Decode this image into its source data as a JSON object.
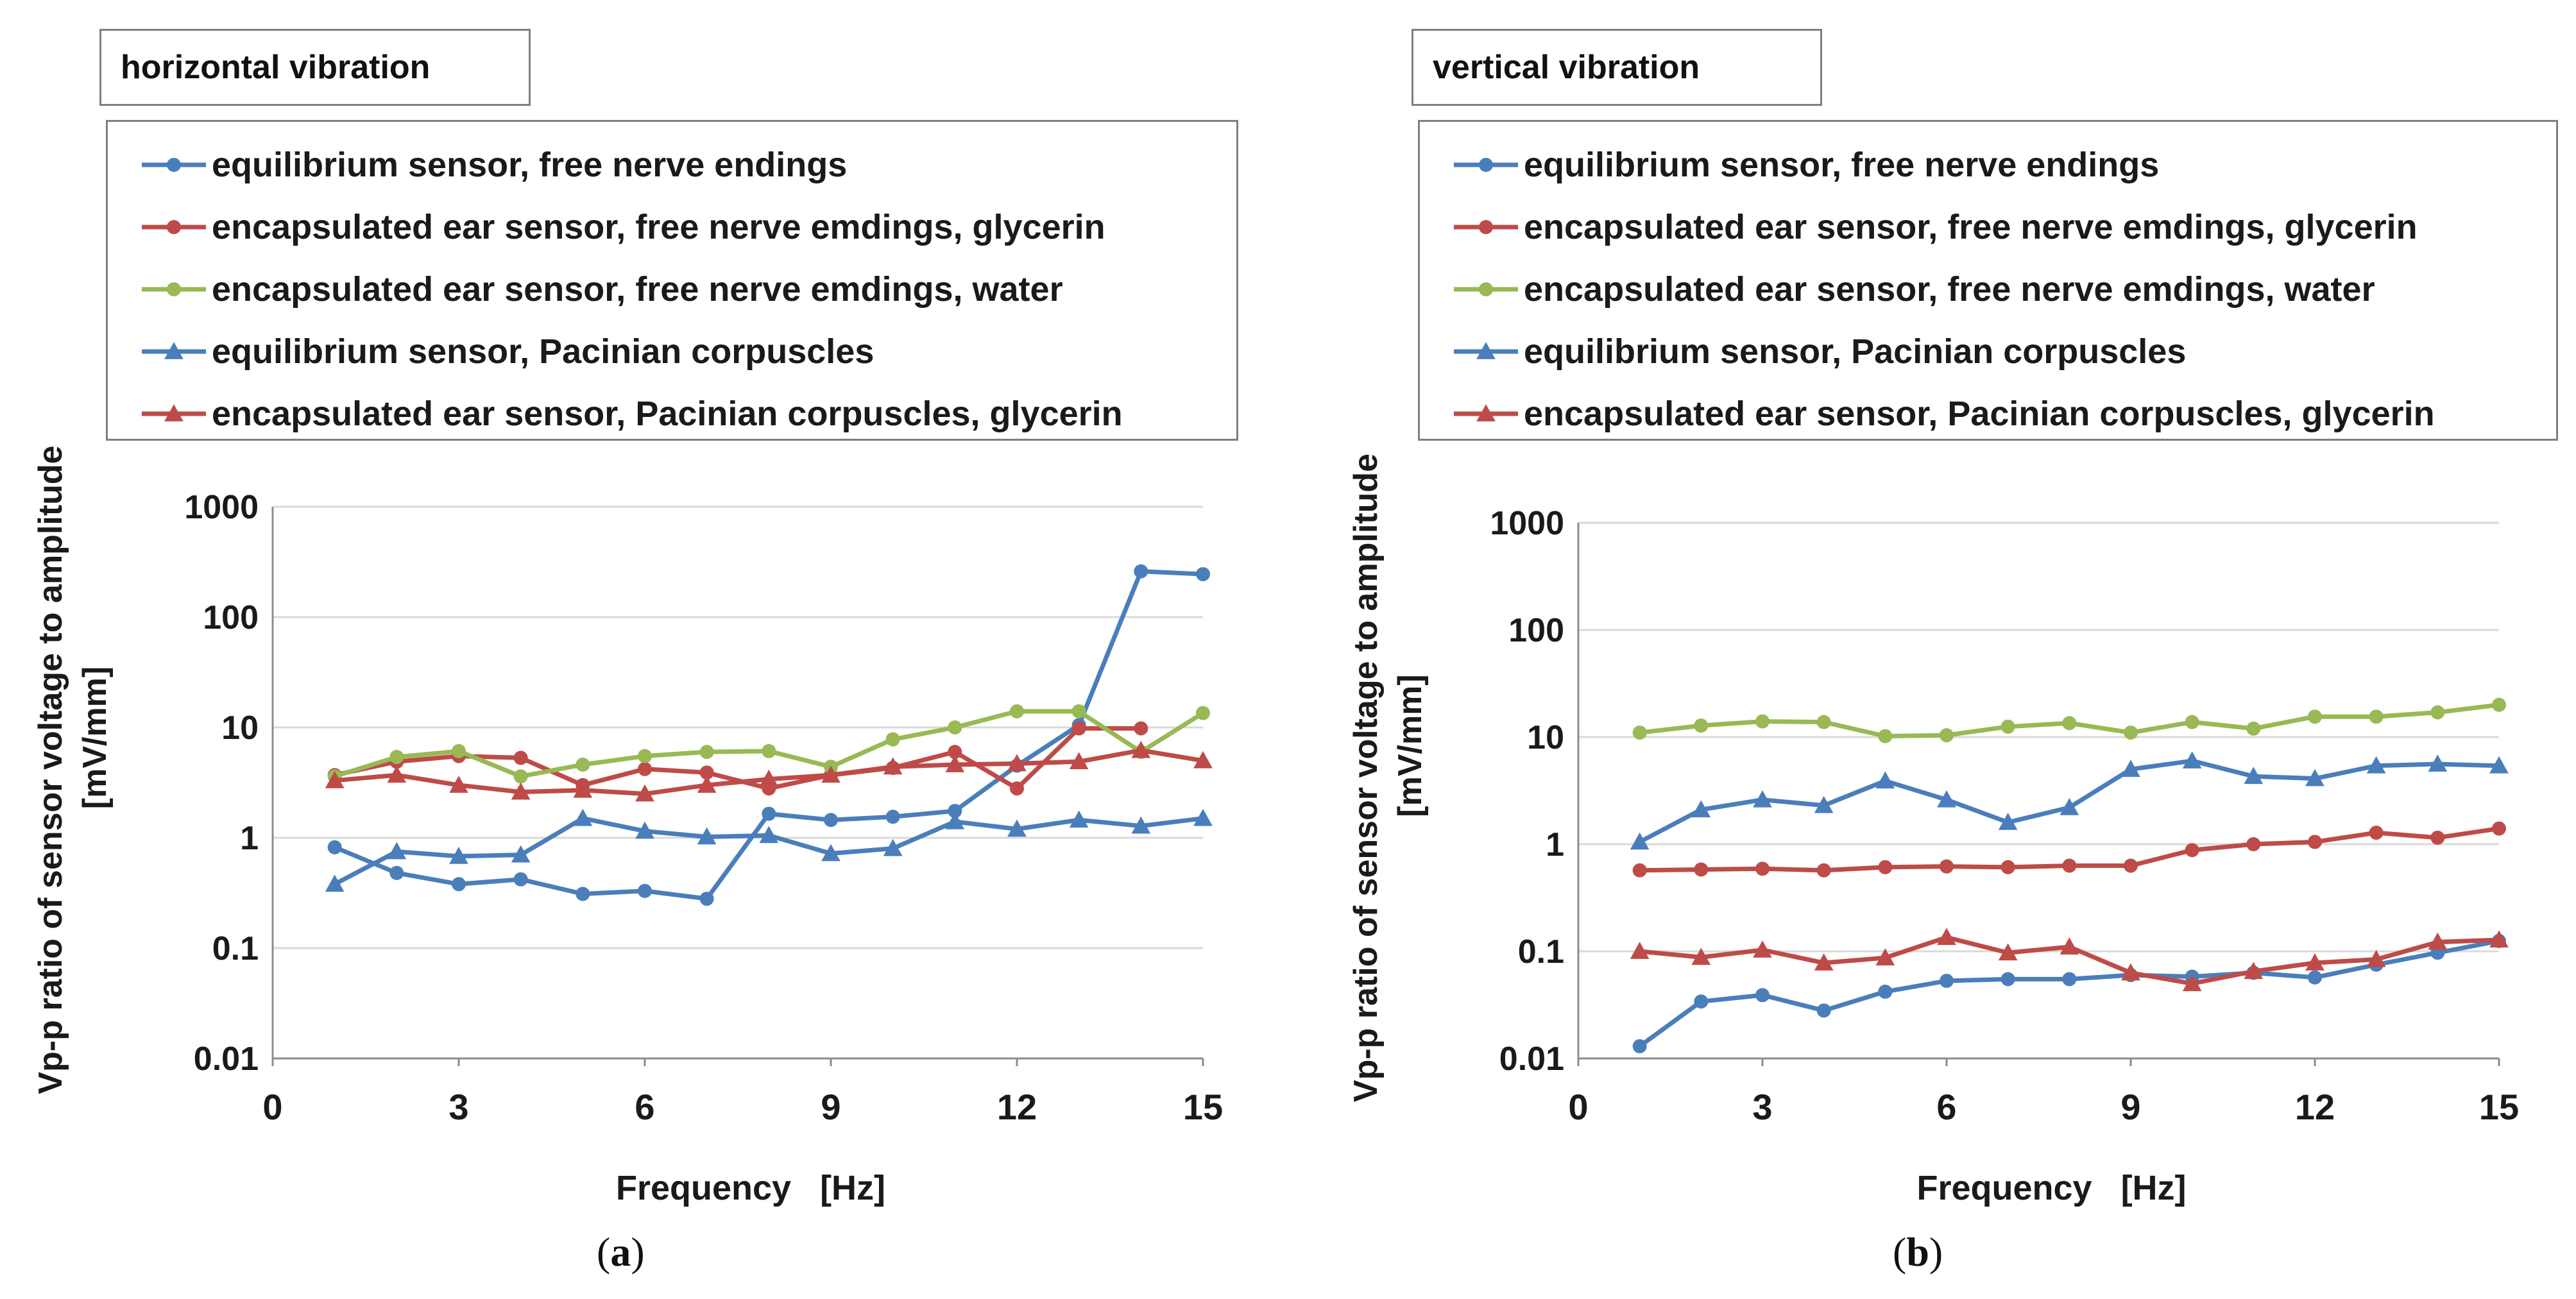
{
  "chart_data": [
    {
      "type": "line",
      "title": "horizontal vibration",
      "panel_label": "a",
      "xlabel": "Frequency   [Hz]",
      "ylabel": "Vp-p ratio of sensor voltage to amplitude",
      "ylabel_unit": "[mV/mm]",
      "yscale": "log",
      "xlim": [
        0,
        15
      ],
      "ylim": [
        0.01,
        1000
      ],
      "xticks": [
        "0",
        "3",
        "6",
        "9",
        "12",
        "15"
      ],
      "yticks": [
        "0.01",
        "0.1",
        "1",
        "10",
        "100",
        "1000"
      ],
      "grid": true,
      "x": [
        1,
        2,
        3,
        4,
        5,
        6,
        7,
        8,
        9,
        10,
        11,
        12,
        13,
        14,
        15
      ],
      "series": [
        {
          "name": "equilibrium sensor, free nerve endings",
          "color": "#4a7ebb",
          "marker": "circle",
          "values": [
            0.82,
            0.48,
            0.38,
            0.42,
            0.31,
            0.33,
            0.28,
            1.65,
            1.45,
            1.55,
            1.75,
            4.5,
            10.5,
            260,
            245
          ]
        },
        {
          "name": "encapsulated ear sensor, free nerve emdings, glycerin",
          "color": "#be4b48",
          "marker": "circle",
          "values": [
            3.7,
            4.9,
            5.5,
            5.3,
            3.0,
            4.2,
            3.9,
            2.8,
            3.7,
            4.3,
            6.0,
            2.8,
            9.8,
            9.8,
            null
          ]
        },
        {
          "name": "encapsulated ear sensor, free nerve emdings, water",
          "color": "#98b954",
          "marker": "circle",
          "values": [
            3.6,
            5.4,
            6.1,
            3.6,
            4.6,
            5.5,
            6.0,
            6.1,
            4.4,
            7.8,
            10.0,
            14.0,
            14.0,
            6.0,
            13.5
          ]
        },
        {
          "name": "equilibrium sensor, Pacinian corpuscles",
          "color": "#4a7ebb",
          "marker": "triangle",
          "values": [
            0.38,
            0.75,
            0.68,
            0.7,
            1.5,
            1.15,
            1.02,
            1.05,
            0.72,
            0.8,
            1.4,
            1.2,
            1.45,
            1.28,
            1.5
          ]
        },
        {
          "name": "encapsulated ear sensor, Pacinian corpuscles, glycerin",
          "color": "#be4b48",
          "marker": "triangle",
          "values": [
            3.3,
            3.7,
            3.0,
            2.6,
            2.7,
            2.5,
            3.0,
            3.4,
            3.7,
            4.4,
            4.6,
            4.7,
            4.9,
            6.2,
            5.0
          ]
        }
      ]
    },
    {
      "type": "line",
      "title": "vertical vibration",
      "panel_label": "b",
      "xlabel": "Frequency   [Hz]",
      "ylabel": "Vp-p ratio of sensor voltage to amplitude",
      "ylabel_unit": "[mV/mm]",
      "yscale": "log",
      "xlim": [
        0,
        15
      ],
      "ylim": [
        0.01,
        1000
      ],
      "xticks": [
        "0",
        "3",
        "6",
        "9",
        "12",
        "15"
      ],
      "yticks": [
        "0.01",
        "0.1",
        "1",
        "10",
        "100",
        "1000"
      ],
      "grid": true,
      "x": [
        1,
        2,
        3,
        4,
        5,
        6,
        7,
        8,
        9,
        10,
        11,
        12,
        13,
        14,
        15
      ],
      "series": [
        {
          "name": "equilibrium sensor, free nerve endings",
          "color": "#4a7ebb",
          "marker": "circle",
          "values": [
            0.013,
            0.034,
            0.039,
            0.028,
            0.042,
            0.053,
            0.055,
            0.055,
            0.06,
            0.058,
            0.063,
            0.057,
            0.075,
            0.097,
            0.125
          ]
        },
        {
          "name": "encapsulated ear sensor, free nerve emdings, glycerin",
          "color": "#be4b48",
          "marker": "circle",
          "values": [
            0.57,
            0.58,
            0.59,
            0.57,
            0.61,
            0.62,
            0.61,
            0.63,
            0.63,
            0.88,
            1.0,
            1.05,
            1.28,
            1.15,
            1.4
          ]
        },
        {
          "name": "encapsulated ear sensor, free nerve emdings, water",
          "color": "#98b954",
          "marker": "circle",
          "values": [
            11.0,
            12.8,
            14.0,
            13.8,
            10.2,
            10.4,
            12.5,
            13.5,
            11.0,
            13.8,
            12.0,
            15.5,
            15.5,
            17.0,
            20.0
          ]
        },
        {
          "name": "equilibrium sensor, Pacinian corpuscles",
          "color": "#4a7ebb",
          "marker": "triangle",
          "values": [
            1.05,
            2.1,
            2.6,
            2.3,
            3.9,
            2.6,
            1.6,
            2.2,
            5.0,
            6.0,
            4.3,
            4.1,
            5.4,
            5.6,
            5.4
          ]
        },
        {
          "name": "encapsulated ear sensor, Pacinian corpuscles, glycerin",
          "color": "#be4b48",
          "marker": "triangle",
          "values": [
            0.1,
            0.088,
            0.103,
            0.078,
            0.087,
            0.135,
            0.097,
            0.11,
            0.063,
            0.05,
            0.065,
            0.078,
            0.084,
            0.122,
            0.128
          ]
        }
      ]
    }
  ]
}
